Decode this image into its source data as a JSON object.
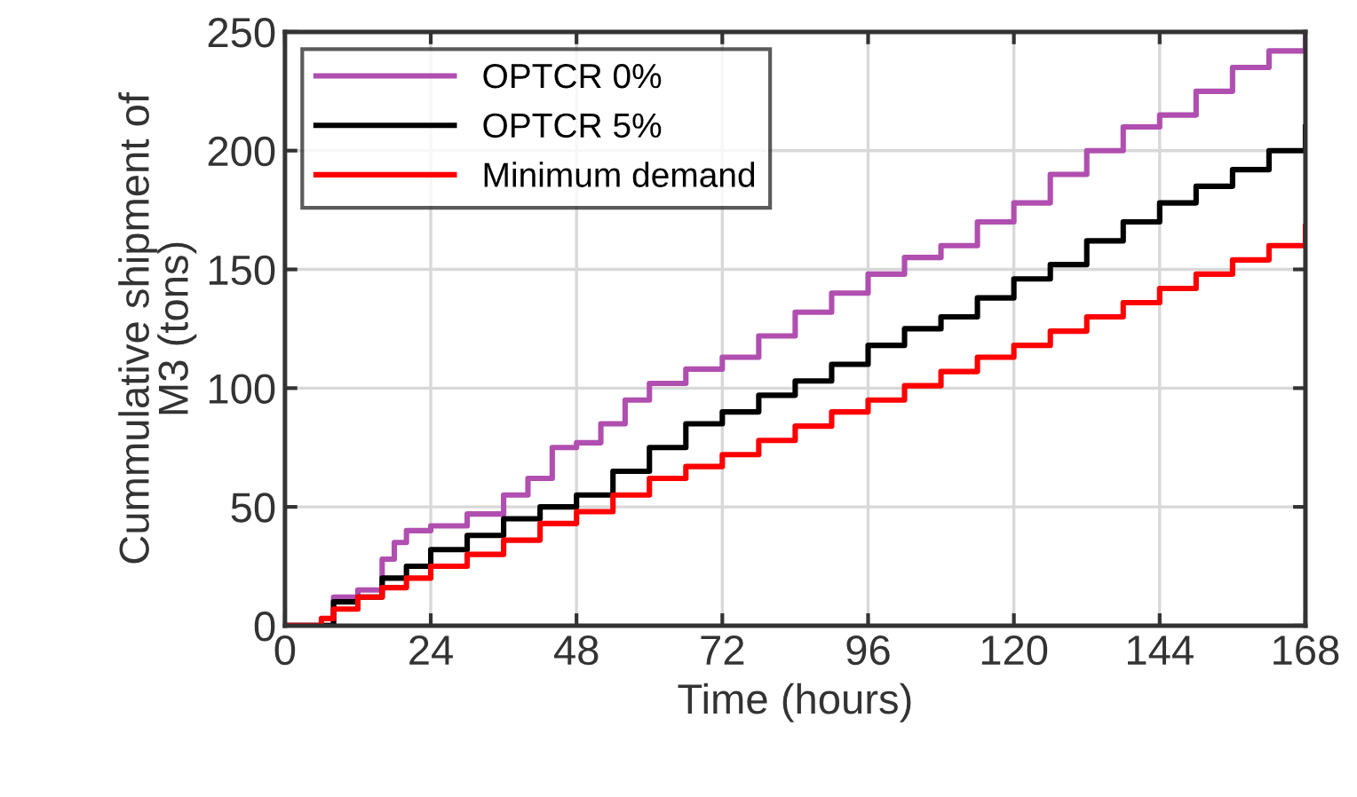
{
  "chart_data": {
    "type": "step",
    "xlabel": "Time (hours)",
    "ylabel": "Cummulative shipment of\nM3 (tons)",
    "xlim": [
      0,
      168
    ],
    "ylim": [
      0,
      250
    ],
    "xticks": [
      0,
      24,
      48,
      72,
      96,
      120,
      144,
      168
    ],
    "yticks": [
      0,
      50,
      100,
      150,
      200,
      250
    ],
    "grid": true,
    "legend": "top left",
    "line_style": "solid",
    "marker": "none",
    "series": [
      {
        "name": "OPTCR 0%",
        "color": "#b04fb0",
        "x": [
          0,
          4,
          8,
          12,
          16,
          18,
          20,
          24,
          30,
          36,
          40,
          44,
          48,
          52,
          56,
          60,
          66,
          72,
          78,
          84,
          90,
          96,
          102,
          108,
          114,
          120,
          126,
          132,
          138,
          144,
          150,
          156,
          162,
          168
        ],
        "values": [
          0,
          0,
          12,
          15,
          28,
          35,
          40,
          42,
          47,
          55,
          62,
          75,
          77,
          85,
          95,
          102,
          108,
          113,
          122,
          132,
          140,
          148,
          155,
          160,
          170,
          178,
          190,
          200,
          210,
          215,
          225,
          235,
          242,
          250
        ]
      },
      {
        "name": "OPTCR 5%",
        "color": "#000000",
        "x": [
          0,
          4,
          8,
          12,
          16,
          20,
          24,
          30,
          36,
          42,
          48,
          54,
          60,
          66,
          72,
          78,
          84,
          90,
          96,
          102,
          108,
          114,
          120,
          126,
          132,
          138,
          144,
          150,
          156,
          162,
          168
        ],
        "values": [
          0,
          0,
          10,
          12,
          20,
          25,
          32,
          38,
          45,
          50,
          55,
          65,
          75,
          85,
          90,
          97,
          103,
          110,
          118,
          125,
          130,
          138,
          146,
          152,
          162,
          170,
          178,
          185,
          192,
          200,
          210
        ]
      },
      {
        "name": "Minimum demand",
        "color": "#ff0000",
        "x": [
          0,
          4,
          6,
          8,
          12,
          16,
          20,
          24,
          30,
          36,
          42,
          48,
          54,
          60,
          66,
          72,
          78,
          84,
          90,
          96,
          102,
          108,
          114,
          120,
          126,
          132,
          138,
          144,
          150,
          156,
          162,
          168
        ],
        "values": [
          0,
          0,
          3,
          7,
          12,
          16,
          20,
          25,
          30,
          36,
          43,
          48,
          55,
          62,
          67,
          72,
          78,
          84,
          90,
          95,
          101,
          107,
          113,
          118,
          124,
          130,
          136,
          142,
          148,
          154,
          160,
          168
        ]
      }
    ]
  }
}
